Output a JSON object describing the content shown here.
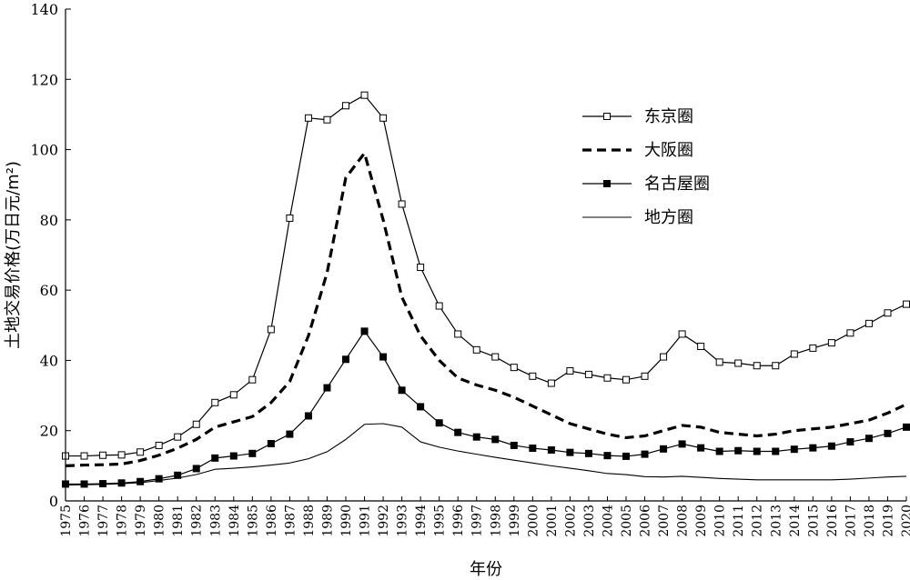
{
  "chart_data": {
    "type": "line",
    "ylabel": "土地交易价格(万日元/m²)",
    "xlabel": "年份",
    "ylim": [
      0,
      140
    ],
    "yticks": [
      0,
      20,
      40,
      60,
      80,
      100,
      120,
      140
    ],
    "grid": false,
    "legend_position": "top-right",
    "x": [
      "1975",
      "1976",
      "1977",
      "1978",
      "1979",
      "1980",
      "1981",
      "1982",
      "1983",
      "1984",
      "1985",
      "1986",
      "1987",
      "1988",
      "1989",
      "1990",
      "1991",
      "1992",
      "1993",
      "1994",
      "1995",
      "1996",
      "1997",
      "1998",
      "1999",
      "2000",
      "2001",
      "2002",
      "2003",
      "2004",
      "2005",
      "2006",
      "2007",
      "2008",
      "2009",
      "2010",
      "2011",
      "2012",
      "2013",
      "2014",
      "2015",
      "2016",
      "2017",
      "2018",
      "2019",
      "2020"
    ],
    "series": [
      {
        "name": "东京圈",
        "style": "solid-open-square",
        "values": [
          12.8,
          12.8,
          13.0,
          13.1,
          13.9,
          15.8,
          18.2,
          21.8,
          28.0,
          30.2,
          34.5,
          48.8,
          80.5,
          109.0,
          108.5,
          112.5,
          115.5,
          109.0,
          84.5,
          66.5,
          55.5,
          47.5,
          43.0,
          41.0,
          38.0,
          35.5,
          33.5,
          37.0,
          36.0,
          35.0,
          34.5,
          35.5,
          41.0,
          47.5,
          44.0,
          39.5,
          39.2,
          38.5,
          38.5,
          41.8,
          43.5,
          45.0,
          47.8,
          50.5,
          53.5,
          56.0
        ]
      },
      {
        "name": "大阪圈",
        "style": "dashed",
        "values": [
          10.0,
          10.2,
          10.3,
          10.5,
          11.5,
          13.0,
          15.0,
          17.5,
          21.0,
          22.5,
          24.0,
          28.0,
          34.0,
          47.0,
          65.0,
          92.0,
          99.0,
          80.0,
          58.0,
          47.0,
          40.0,
          35.0,
          33.0,
          31.5,
          29.5,
          27.0,
          24.5,
          22.0,
          20.5,
          19.0,
          18.0,
          18.5,
          20.0,
          21.5,
          21.0,
          19.5,
          19.0,
          18.5,
          19.0,
          20.0,
          20.5,
          21.0,
          22.0,
          23.0,
          25.0,
          27.5
        ]
      },
      {
        "name": "名古屋圈",
        "style": "solid-filled-square",
        "values": [
          4.8,
          4.8,
          4.9,
          5.1,
          5.5,
          6.3,
          7.3,
          9.2,
          12.2,
          12.8,
          13.5,
          16.3,
          19.0,
          24.2,
          32.2,
          40.3,
          48.3,
          41.0,
          31.5,
          26.8,
          22.2,
          19.5,
          18.2,
          17.5,
          15.8,
          15.0,
          14.5,
          13.8,
          13.5,
          12.9,
          12.7,
          13.3,
          14.8,
          16.2,
          15.1,
          14.1,
          14.3,
          14.1,
          14.1,
          14.7,
          15.1,
          15.6,
          16.8,
          17.8,
          19.2,
          21.0
        ]
      },
      {
        "name": "地方圈",
        "style": "solid-thin",
        "values": [
          4.5,
          4.6,
          4.7,
          4.9,
          5.2,
          5.8,
          6.5,
          7.5,
          9.0,
          9.3,
          9.7,
          10.2,
          10.8,
          12.0,
          14.0,
          17.5,
          21.8,
          22.0,
          21.0,
          16.8,
          15.3,
          14.2,
          13.3,
          12.4,
          11.6,
          10.8,
          10.0,
          9.3,
          8.6,
          7.8,
          7.5,
          6.9,
          6.8,
          7.0,
          6.7,
          6.4,
          6.2,
          6.0,
          6.0,
          6.0,
          6.0,
          6.0,
          6.2,
          6.5,
          6.8,
          7.0
        ]
      }
    ]
  }
}
